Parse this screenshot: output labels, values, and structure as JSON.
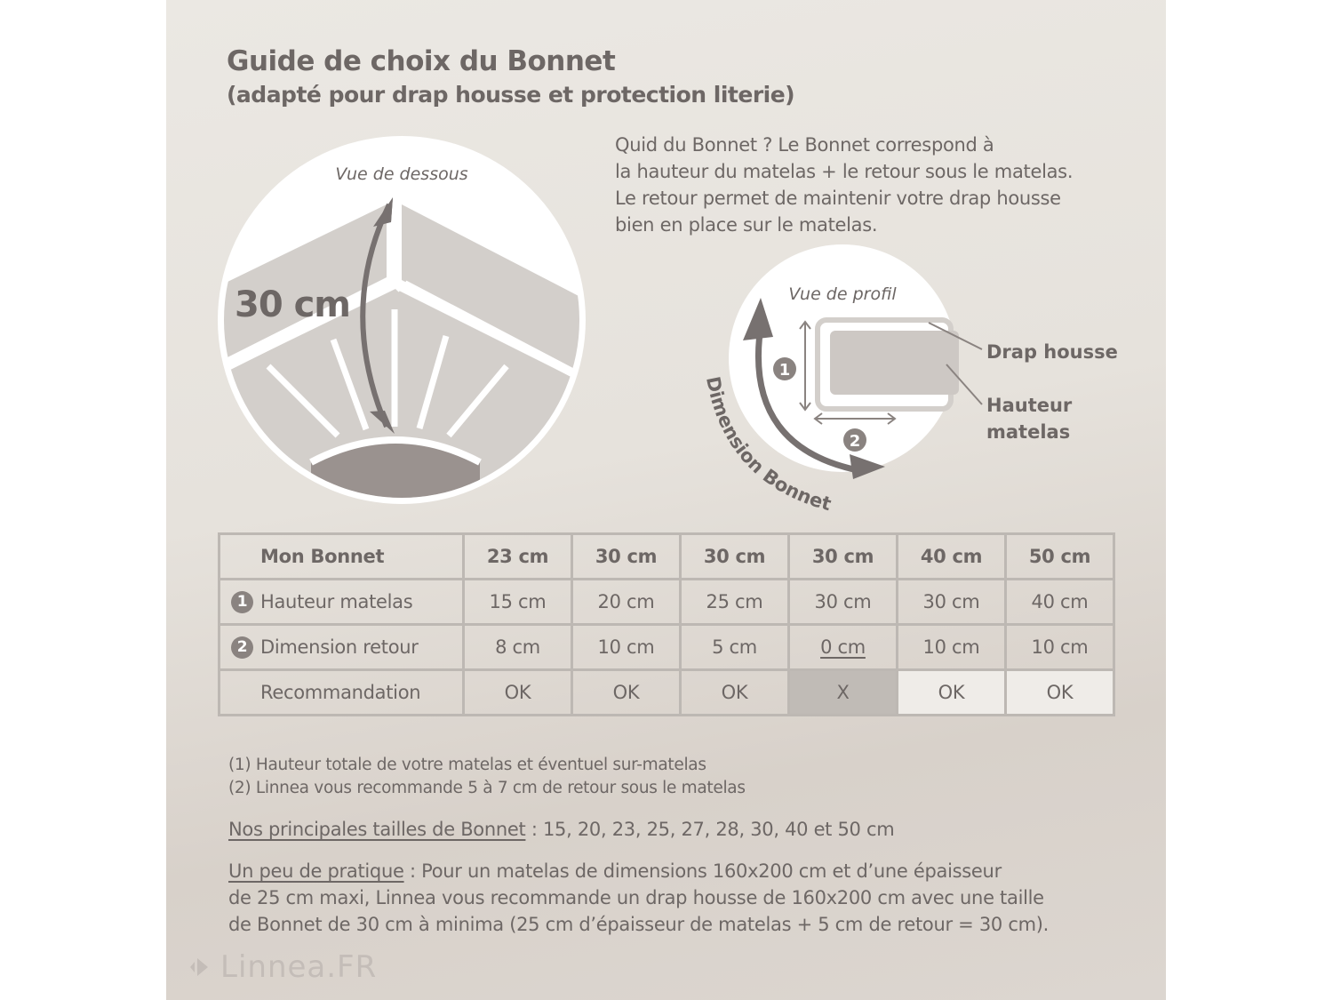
{
  "header": {
    "title": "Guide de choix du Bonnet",
    "subtitle": "(adapté pour drap housse et protection literie)"
  },
  "intro": {
    "lines": [
      "Quid du Bonnet ? Le Bonnet correspond à",
      "la hauteur du matelas + le retour sous le matelas.",
      "Le retour permet de maintenir votre drap housse",
      "bien en place sur le matelas."
    ]
  },
  "diagram_bottom_view": {
    "label": "Vue de dessous",
    "measure": "30 cm"
  },
  "diagram_profile_view": {
    "label": "Vue de profil",
    "marker_1": "1",
    "marker_2": "2",
    "arc_label": "Dimension Bonnet",
    "label_sheet": "Drap housse",
    "label_height_1": "Hauteur",
    "label_height_2": "matelas"
  },
  "table": {
    "header": [
      "Mon Bonnet",
      "23 cm",
      "30 cm",
      "30 cm",
      "30 cm",
      "40 cm",
      "50 cm"
    ],
    "rows": [
      {
        "marker": "1",
        "label": "Hauteur matelas",
        "values": [
          "15 cm",
          "20 cm",
          "25 cm",
          "30 cm",
          "30 cm",
          "40 cm"
        ]
      },
      {
        "marker": "2",
        "label": "Dimension retour",
        "values": [
          "8 cm",
          "10 cm",
          "5 cm",
          "0 cm",
          "10 cm",
          "10 cm"
        ]
      },
      {
        "marker": "",
        "label": "Recommandation",
        "values": [
          "OK",
          "OK",
          "OK",
          "X",
          "OK",
          "OK"
        ]
      }
    ]
  },
  "notes": {
    "n1_marker": "(1)",
    "n1": "Hauteur totale de votre matelas et éventuel sur-matelas",
    "n2_marker": "(2)",
    "n2": "Linnea vous recommande 5 à 7 cm de retour sous le matelas"
  },
  "sizes": {
    "label": "Nos principales tailles de Bonnet",
    "text": " : 15, 20, 23, 25, 27, 28, 30, 40 et 50 cm"
  },
  "practice": {
    "label": "Un peu de pratique",
    "line1": " : Pour un matelas de dimensions 160x200 cm et d’une épaisseur",
    "line2": "de 25 cm maxi, Linnea vous recommande un drap housse de 160x200 cm avec une taille",
    "line3": "de Bonnet de 30 cm à minima (25 cm d’épaisseur de matelas + 5 cm de retour = 30 cm)."
  },
  "logo": {
    "text": "Linnea.FR"
  },
  "colors": {
    "text": "#6d6765",
    "background": "#e6e2dc",
    "rejected_cell": "#c0bbb6",
    "table_border": "#bdb8b3"
  }
}
